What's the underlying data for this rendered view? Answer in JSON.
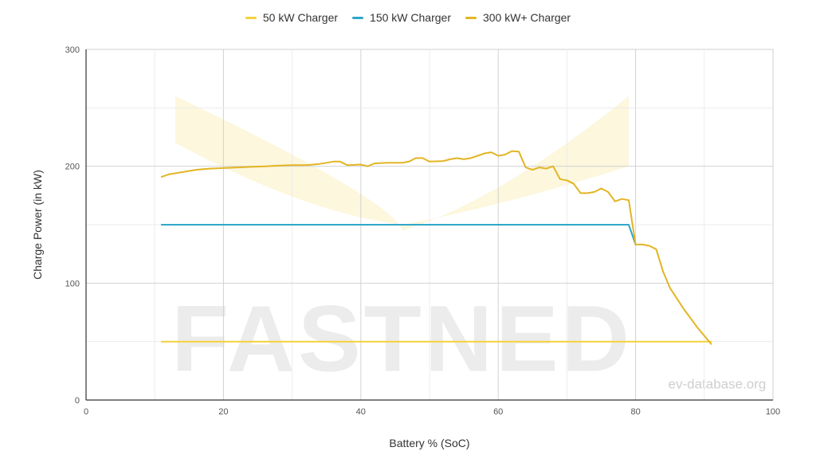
{
  "chart_data": {
    "type": "line",
    "xlabel": "Battery % (SoC)",
    "ylabel": "Charge Power (in kW)",
    "xlim": [
      0,
      100
    ],
    "ylim": [
      0,
      300
    ],
    "x_ticks": [
      0,
      20,
      40,
      60,
      80,
      100
    ],
    "y_ticks": [
      0,
      100,
      200,
      300
    ],
    "grid": true,
    "legend_position": "top-center",
    "watermark": "FASTNED",
    "source": "ev-database.org",
    "series": [
      {
        "name": "50 kW Charger",
        "color": "#f3d23b",
        "points": [
          [
            11,
            50
          ],
          [
            91,
            50
          ]
        ]
      },
      {
        "name": "150 kW Charger",
        "color": "#2ea7c9",
        "points": [
          [
            11,
            150
          ],
          [
            79,
            150
          ],
          [
            80,
            133
          ]
        ]
      },
      {
        "name": "300 kW+ Charger",
        "color": "#e3b523",
        "points": [
          [
            11,
            191
          ],
          [
            12,
            193
          ],
          [
            14,
            195
          ],
          [
            16,
            197
          ],
          [
            18,
            198
          ],
          [
            20,
            198.5
          ],
          [
            22,
            199
          ],
          [
            24,
            199.5
          ],
          [
            26,
            200
          ],
          [
            28,
            200.5
          ],
          [
            30,
            201
          ],
          [
            32,
            201
          ],
          [
            34,
            202
          ],
          [
            35,
            203
          ],
          [
            36,
            204
          ],
          [
            37,
            204
          ],
          [
            38,
            201
          ],
          [
            40,
            201.5
          ],
          [
            41,
            200
          ],
          [
            42,
            202.5
          ],
          [
            44,
            203
          ],
          [
            46,
            203
          ],
          [
            47,
            204
          ],
          [
            48,
            207
          ],
          [
            49,
            207
          ],
          [
            50,
            204
          ],
          [
            52,
            204.5
          ],
          [
            53,
            206
          ],
          [
            54,
            207
          ],
          [
            55,
            206
          ],
          [
            56,
            207
          ],
          [
            57,
            209
          ],
          [
            58,
            211
          ],
          [
            59,
            212
          ],
          [
            60,
            209
          ],
          [
            61,
            210
          ],
          [
            62,
            213
          ],
          [
            63,
            212.5
          ],
          [
            64,
            199
          ],
          [
            65,
            197
          ],
          [
            66,
            199
          ],
          [
            67,
            198
          ],
          [
            68,
            200
          ],
          [
            69,
            189
          ],
          [
            70,
            188
          ],
          [
            71,
            185
          ],
          [
            72,
            177
          ],
          [
            73,
            177
          ],
          [
            74,
            178
          ],
          [
            75,
            181
          ],
          [
            76,
            178
          ],
          [
            77,
            170
          ],
          [
            78,
            172
          ],
          [
            79,
            171
          ],
          [
            80,
            133
          ],
          [
            81,
            133
          ],
          [
            82,
            132
          ],
          [
            83,
            129
          ],
          [
            84,
            110
          ],
          [
            85,
            96
          ],
          [
            86,
            87
          ],
          [
            87,
            78
          ],
          [
            88,
            70
          ],
          [
            89,
            62
          ],
          [
            90,
            55
          ],
          [
            91,
            48
          ]
        ]
      }
    ]
  }
}
